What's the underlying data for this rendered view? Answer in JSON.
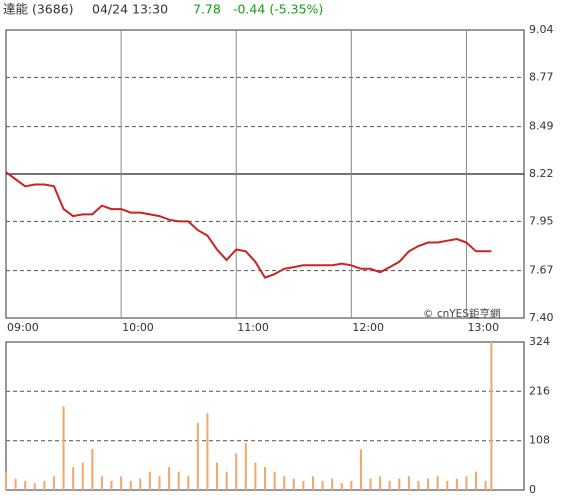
{
  "header": {
    "name": "達能 (3686)",
    "time": "04/24 13:30",
    "price": "7.78",
    "change": "-0.44 (-5.35%)",
    "watermark": "© cnYES鉅亨網"
  },
  "chart_data": [
    {
      "type": "line",
      "color": "#cc2222",
      "reference_value": 8.22,
      "x": [
        "09:00",
        "09:05",
        "09:10",
        "09:15",
        "09:20",
        "09:25",
        "09:30",
        "09:35",
        "09:40",
        "09:45",
        "09:50",
        "09:55",
        "10:00",
        "10:05",
        "10:10",
        "10:15",
        "10:20",
        "10:25",
        "10:30",
        "10:35",
        "10:40",
        "10:45",
        "10:50",
        "10:55",
        "11:00",
        "11:05",
        "11:10",
        "11:15",
        "11:20",
        "11:25",
        "11:30",
        "11:35",
        "11:40",
        "11:45",
        "11:50",
        "11:55",
        "12:00",
        "12:05",
        "12:10",
        "12:15",
        "12:20",
        "12:25",
        "12:30",
        "12:35",
        "12:40",
        "12:45",
        "12:50",
        "12:55",
        "13:00",
        "13:05",
        "13:10",
        "13:13"
      ],
      "values": [
        8.23,
        8.19,
        8.15,
        8.16,
        8.16,
        8.15,
        8.02,
        7.98,
        7.99,
        7.99,
        8.04,
        8.02,
        8.02,
        8.0,
        8.0,
        7.99,
        7.98,
        7.96,
        7.95,
        7.95,
        7.9,
        7.87,
        7.79,
        7.73,
        7.79,
        7.78,
        7.72,
        7.63,
        7.65,
        7.68,
        7.69,
        7.7,
        7.7,
        7.7,
        7.7,
        7.71,
        7.7,
        7.68,
        7.68,
        7.66,
        7.69,
        7.72,
        7.78,
        7.81,
        7.83,
        7.83,
        7.84,
        7.85,
        7.83,
        7.78,
        7.78,
        7.78
      ],
      "xlim": [
        "09:00",
        "13:30"
      ],
      "xticks": [
        "09:00",
        "10:00",
        "11:00",
        "12:00",
        "13:00"
      ],
      "ylim": [
        7.4,
        9.04
      ],
      "yticks": [
        {
          "value": 7.4,
          "label": "7.40"
        },
        7.67,
        7.95,
        8.22,
        8.49,
        8.77,
        9.04
      ]
    },
    {
      "type": "bar",
      "color": "#f2a66a",
      "x": [
        "09:00",
        "09:05",
        "09:10",
        "09:15",
        "09:20",
        "09:25",
        "09:30",
        "09:35",
        "09:40",
        "09:45",
        "09:50",
        "09:55",
        "10:00",
        "10:05",
        "10:10",
        "10:15",
        "10:20",
        "10:25",
        "10:30",
        "10:35",
        "10:40",
        "10:45",
        "10:50",
        "10:55",
        "11:00",
        "11:05",
        "11:10",
        "11:15",
        "11:20",
        "11:25",
        "11:30",
        "11:35",
        "11:40",
        "11:45",
        "11:50",
        "11:55",
        "12:00",
        "12:05",
        "12:10",
        "12:15",
        "12:20",
        "12:25",
        "12:30",
        "12:35",
        "12:40",
        "12:45",
        "12:50",
        "12:55",
        "13:00",
        "13:05",
        "13:10",
        "13:13"
      ],
      "values": [
        40,
        25,
        20,
        15,
        20,
        30,
        183,
        50,
        60,
        90,
        30,
        20,
        30,
        20,
        25,
        40,
        30,
        50,
        40,
        30,
        147,
        168,
        60,
        40,
        80,
        103,
        60,
        50,
        40,
        30,
        25,
        20,
        30,
        20,
        25,
        15,
        20,
        89,
        25,
        30,
        20,
        25,
        30,
        20,
        25,
        30,
        20,
        25,
        30,
        40,
        20,
        324
      ],
      "xlim": [
        "09:00",
        "13:30"
      ],
      "ylim": [
        0,
        324
      ],
      "yticks": [
        0,
        108,
        216,
        324
      ]
    }
  ]
}
